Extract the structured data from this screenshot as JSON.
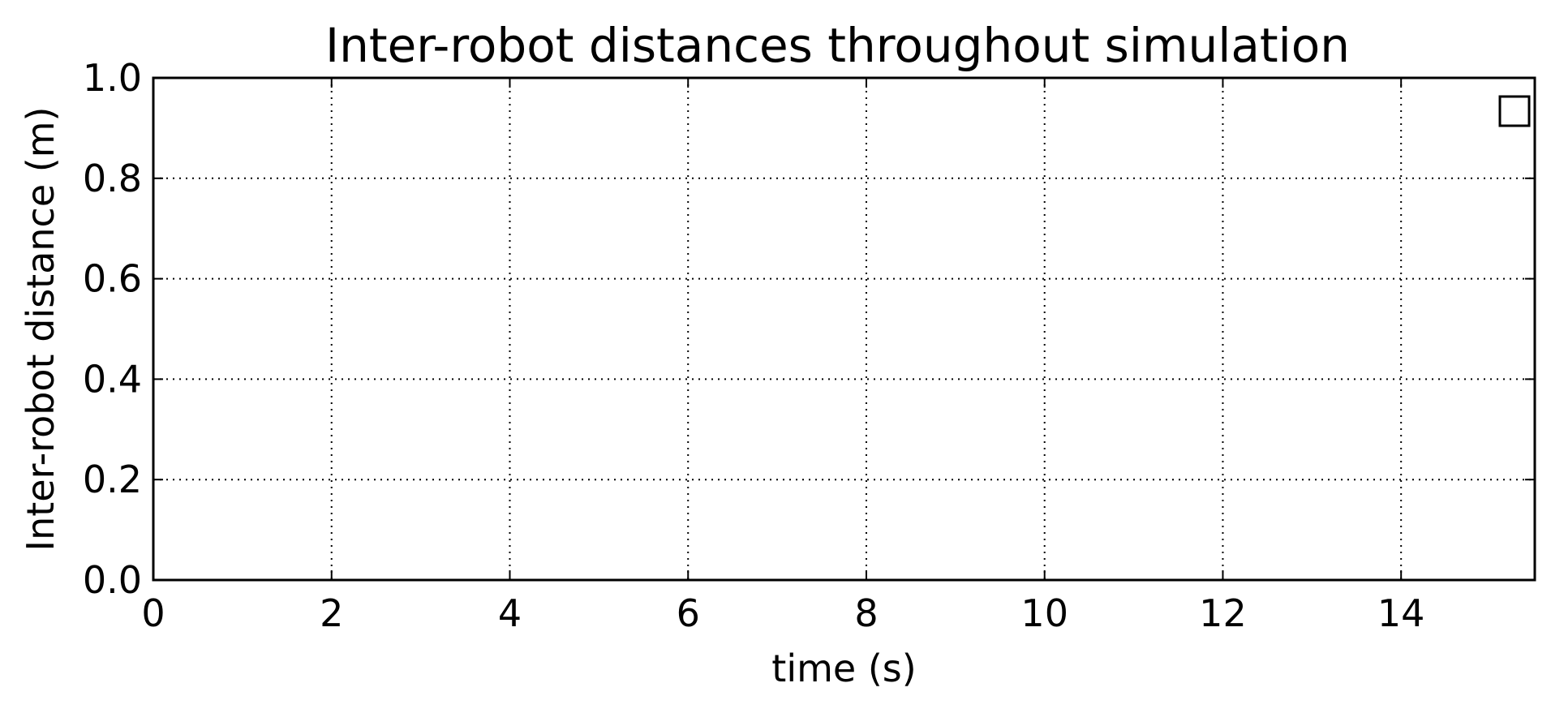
{
  "chart_data": {
    "type": "line",
    "title": "Inter-robot distances throughout simulation",
    "xlabel": "time (s)",
    "ylabel": "Inter-robot distance (m)",
    "xlim": [
      0,
      15.5
    ],
    "ylim": [
      0.0,
      1.0
    ],
    "x_ticks": [
      0,
      2,
      4,
      6,
      8,
      10,
      12,
      14
    ],
    "x_tick_labels": [
      "0",
      "2",
      "4",
      "6",
      "8",
      "10",
      "12",
      "14"
    ],
    "y_ticks": [
      0.0,
      0.2,
      0.4,
      0.6,
      0.8,
      1.0
    ],
    "y_tick_labels": [
      "0.0",
      "0.2",
      "0.4",
      "0.6",
      "0.8",
      "1.0"
    ],
    "grid": true,
    "legend": {
      "placement": "top-right",
      "entries": []
    },
    "series": [],
    "colors": {
      "axes": "#000000",
      "grid": "#000000",
      "background": "#ffffff"
    }
  }
}
